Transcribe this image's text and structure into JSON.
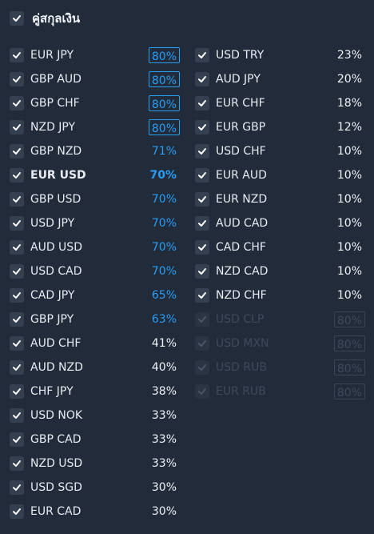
{
  "header": {
    "title": "คู่สกุลเงิน"
  },
  "colors": {
    "blue": "#2a9df4",
    "white": "#eef1f5",
    "dim": "#3e4a5a"
  },
  "left": [
    {
      "pair": "EUR JPY",
      "pct": "80%",
      "style": "boxed"
    },
    {
      "pair": "GBP AUD",
      "pct": "80%",
      "style": "boxed"
    },
    {
      "pair": "GBP CHF",
      "pct": "80%",
      "style": "boxed"
    },
    {
      "pair": "NZD JPY",
      "pct": "80%",
      "style": "boxed"
    },
    {
      "pair": "GBP NZD",
      "pct": "71%",
      "style": "blue"
    },
    {
      "pair": "EUR USD",
      "pct": "70%",
      "style": "blue",
      "bold": true
    },
    {
      "pair": "GBP USD",
      "pct": "70%",
      "style": "blue"
    },
    {
      "pair": "USD JPY",
      "pct": "70%",
      "style": "blue"
    },
    {
      "pair": "AUD USD",
      "pct": "70%",
      "style": "blue"
    },
    {
      "pair": "USD CAD",
      "pct": "70%",
      "style": "blue"
    },
    {
      "pair": "CAD JPY",
      "pct": "65%",
      "style": "blue"
    },
    {
      "pair": "GBP JPY",
      "pct": "63%",
      "style": "blue"
    },
    {
      "pair": "AUD CHF",
      "pct": "41%",
      "style": "white"
    },
    {
      "pair": "AUD NZD",
      "pct": "40%",
      "style": "white"
    },
    {
      "pair": "CHF JPY",
      "pct": "38%",
      "style": "white"
    },
    {
      "pair": "USD NOK",
      "pct": "33%",
      "style": "white"
    },
    {
      "pair": "GBP CAD",
      "pct": "33%",
      "style": "white"
    },
    {
      "pair": "NZD USD",
      "pct": "33%",
      "style": "white"
    },
    {
      "pair": "USD SGD",
      "pct": "30%",
      "style": "white"
    },
    {
      "pair": "EUR CAD",
      "pct": "30%",
      "style": "white"
    }
  ],
  "right": [
    {
      "pair": "USD TRY",
      "pct": "23%",
      "style": "white"
    },
    {
      "pair": "AUD JPY",
      "pct": "20%",
      "style": "white"
    },
    {
      "pair": "EUR CHF",
      "pct": "18%",
      "style": "white"
    },
    {
      "pair": "EUR GBP",
      "pct": "12%",
      "style": "white"
    },
    {
      "pair": "USD CHF",
      "pct": "10%",
      "style": "white"
    },
    {
      "pair": "EUR AUD",
      "pct": "10%",
      "style": "white"
    },
    {
      "pair": "EUR NZD",
      "pct": "10%",
      "style": "white"
    },
    {
      "pair": "AUD CAD",
      "pct": "10%",
      "style": "white"
    },
    {
      "pair": "CAD CHF",
      "pct": "10%",
      "style": "white"
    },
    {
      "pair": "NZD CAD",
      "pct": "10%",
      "style": "white"
    },
    {
      "pair": "NZD CHF",
      "pct": "10%",
      "style": "white"
    },
    {
      "pair": "USD CLP",
      "pct": "80%",
      "style": "disabled"
    },
    {
      "pair": "USD MXN",
      "pct": "80%",
      "style": "disabled"
    },
    {
      "pair": "USD RUB",
      "pct": "80%",
      "style": "disabled"
    },
    {
      "pair": "EUR RUB",
      "pct": "80%",
      "style": "disabled"
    }
  ]
}
